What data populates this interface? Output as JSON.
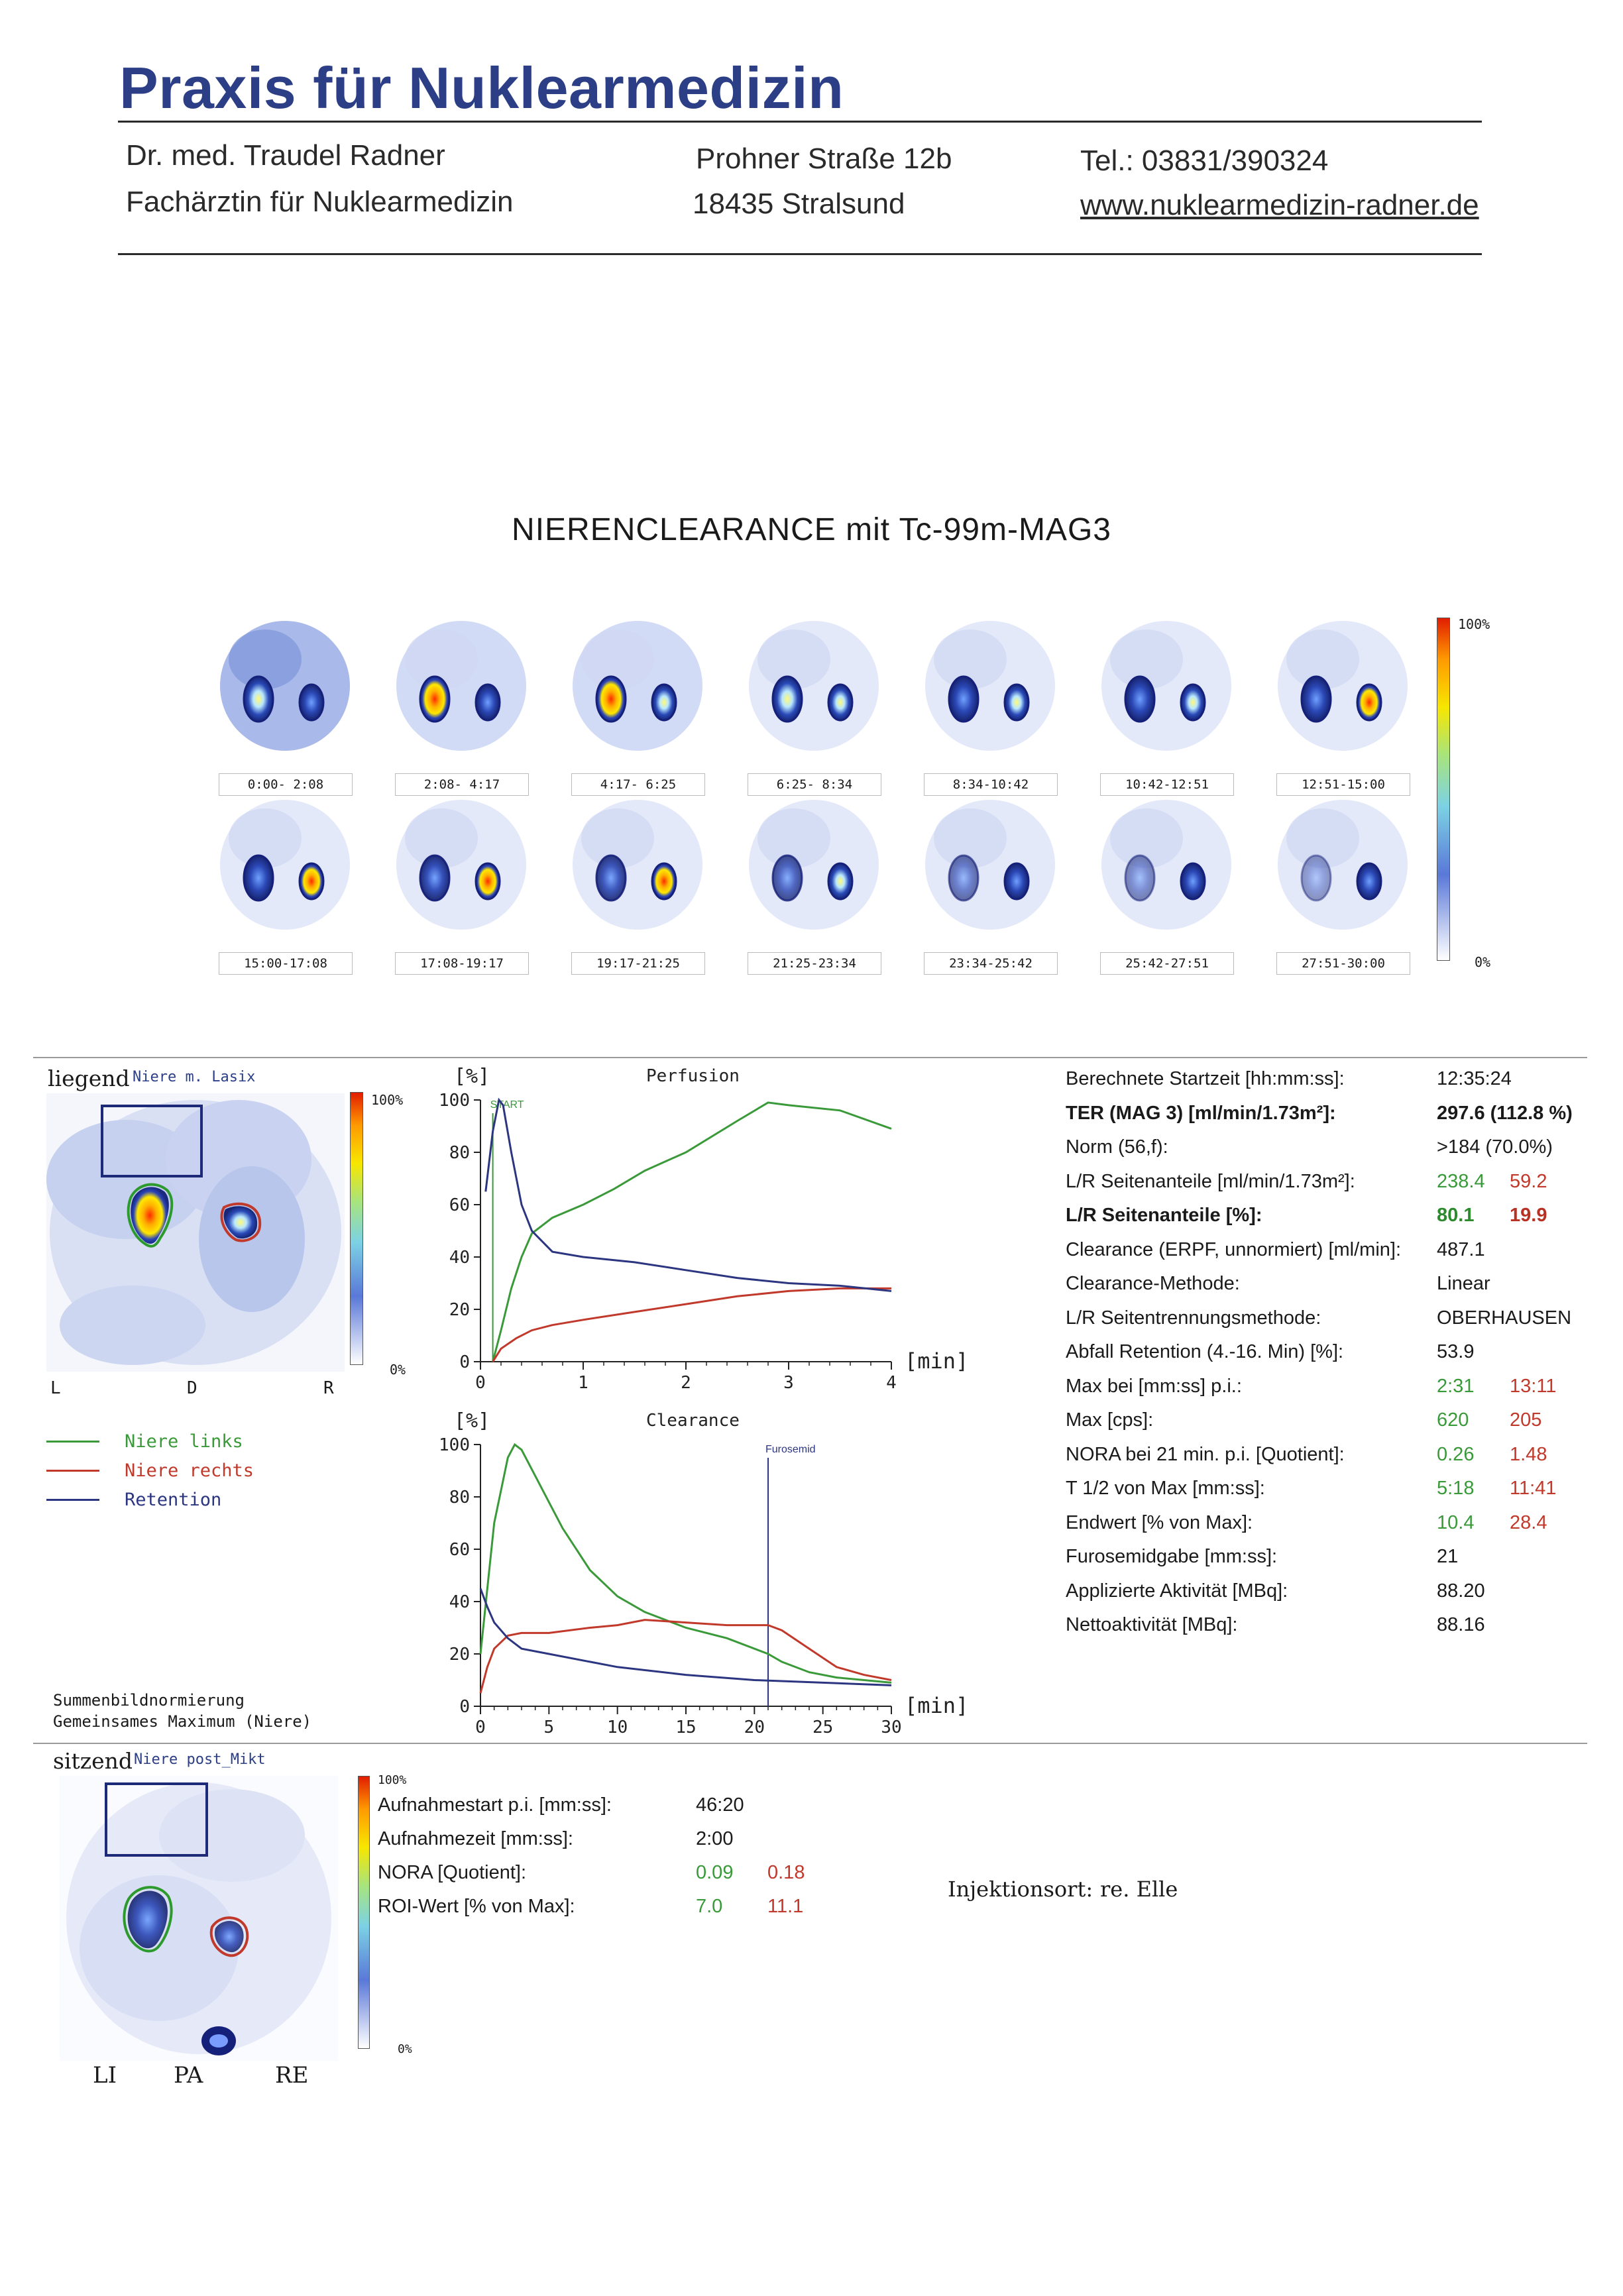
{
  "header": {
    "practice": "Praxis für Nuklearmedizin",
    "doctor": "Dr. med. Traudel Radner",
    "specialty": "Fachärztin für Nuklearmedizin",
    "street": "Prohner Straße 12b",
    "city": "18435 Stralsund",
    "phone": "Tel.: 03831/390324",
    "web": "www.nuklearmedizin-radner.de"
  },
  "title": "NIERENCLEARANCE  mit  Tc-99m-MAG3",
  "sequence": {
    "frames": [
      "0:00- 2:08",
      "2:08- 4:17",
      "4:17- 6:25",
      "6:25- 8:34",
      "8:34-10:42",
      "10:42-12:51",
      "12:51-15:00",
      "15:00-17:08",
      "17:08-19:17",
      "19:17-21:25",
      "21:25-23:34",
      "23:34-25:42",
      "25:42-27:51",
      "27:51-30:00"
    ],
    "scale_max": "100%",
    "scale_min": "0%"
  },
  "supine": {
    "position": "liegend",
    "image_label": "Niere m. Lasix",
    "scale_max": "100%",
    "scale_min": "0%",
    "orient_l": "L",
    "orient_d": "D",
    "orient_r": "R",
    "legend": [
      {
        "label": "Niere links",
        "color": "#3a9a3a"
      },
      {
        "label": "Niere rechts",
        "color": "#c0392b"
      },
      {
        "label": "Retention",
        "color": "#2c3580"
      }
    ],
    "normalization_1": "Summenbildnormierung",
    "normalization_2": "Gemeinsames Maximum (Niere)"
  },
  "chart_data": [
    {
      "type": "line",
      "title": "Perfusion",
      "ylabel": "[%]",
      "xlabel": "[min]",
      "xlim": [
        0,
        4
      ],
      "ylim": [
        0,
        100
      ],
      "xticks": [
        "0",
        "1",
        "2",
        "3",
        "4"
      ],
      "yticks": [
        "0",
        "20",
        "40",
        "60",
        "80",
        "100"
      ],
      "marker": {
        "label": "START",
        "x": 0.12
      },
      "series": [
        {
          "name": "Niere links",
          "color": "#3a9a3a",
          "x": [
            0.12,
            0.2,
            0.3,
            0.4,
            0.5,
            0.7,
            1.0,
            1.3,
            1.6,
            2.0,
            2.5,
            2.8,
            3.0,
            3.5,
            4.0
          ],
          "y": [
            0,
            12,
            28,
            40,
            49,
            55,
            60,
            66,
            73,
            80,
            92,
            99,
            98,
            96,
            89
          ]
        },
        {
          "name": "Niere rechts",
          "color": "#c0392b",
          "x": [
            0.12,
            0.2,
            0.35,
            0.5,
            0.7,
            1.0,
            1.5,
            2.0,
            2.5,
            3.0,
            3.5,
            4.0
          ],
          "y": [
            0,
            5,
            9,
            12,
            14,
            16,
            19,
            22,
            25,
            27,
            28,
            28
          ]
        },
        {
          "name": "Retention",
          "color": "#2c3580",
          "x": [
            0.05,
            0.12,
            0.18,
            0.22,
            0.3,
            0.4,
            0.5,
            0.7,
            1.0,
            1.5,
            2.0,
            2.5,
            3.0,
            3.5,
            4.0
          ],
          "y": [
            65,
            88,
            100,
            98,
            80,
            60,
            50,
            42,
            40,
            38,
            35,
            32,
            30,
            29,
            27
          ]
        }
      ]
    },
    {
      "type": "line",
      "title": "Clearance",
      "ylabel": "[%]",
      "xlabel": "[min]",
      "xlim": [
        0,
        30
      ],
      "ylim": [
        0,
        100
      ],
      "xticks": [
        "0",
        "5",
        "10",
        "15",
        "20",
        "25",
        "30"
      ],
      "yticks": [
        "0",
        "20",
        "40",
        "60",
        "80",
        "100"
      ],
      "marker": {
        "label": "Furosemid",
        "x": 21
      },
      "series": [
        {
          "name": "Niere links",
          "color": "#3a9a3a",
          "x": [
            0,
            1,
            2,
            2.5,
            3,
            4,
            5,
            6,
            8,
            10,
            12,
            15,
            18,
            21,
            22,
            24,
            26,
            28,
            30
          ],
          "y": [
            20,
            70,
            95,
            100,
            98,
            88,
            78,
            68,
            52,
            42,
            36,
            30,
            26,
            20,
            17,
            13,
            11,
            10,
            9
          ]
        },
        {
          "name": "Niere rechts",
          "color": "#c0392b",
          "x": [
            0,
            0.5,
            1,
            2,
            3,
            5,
            8,
            10,
            12,
            15,
            18,
            21,
            22,
            24,
            26,
            28,
            30
          ],
          "y": [
            5,
            15,
            22,
            27,
            28,
            28,
            30,
            31,
            33,
            32,
            31,
            31,
            29,
            22,
            15,
            12,
            10
          ]
        },
        {
          "name": "Retention",
          "color": "#2c3580",
          "x": [
            0,
            0.5,
            1,
            2,
            3,
            5,
            8,
            10,
            15,
            20,
            25,
            30
          ],
          "y": [
            45,
            38,
            32,
            26,
            22,
            20,
            17,
            15,
            12,
            10,
            9,
            8
          ]
        }
      ]
    }
  ],
  "results": [
    {
      "label": "Berechnete Startzeit [hh:mm:ss]:",
      "v1": "12:35:24"
    },
    {
      "label": "TER (MAG 3) [ml/min/1.73m²]:",
      "v1": "297.6 (112.8 %)",
      "bold": true
    },
    {
      "label": "Norm (56,f):",
      "v1": ">184 (70.0%)"
    },
    {
      "label": "L/R Seitenanteile [ml/min/1.73m²]:",
      "v1": "238.4",
      "v2": "59.2"
    },
    {
      "label": "L/R Seitenanteile [%]:",
      "v1": "80.1",
      "v2": "19.9",
      "bold": true
    },
    {
      "label": "Clearance (ERPF, unnormiert) [ml/min]:",
      "v1": "487.1"
    },
    {
      "label": "Clearance-Methode:",
      "v1": "Linear"
    },
    {
      "label": "L/R Seitentrennungsmethode:",
      "v1": "OBERHAUSEN"
    },
    {
      "label": "Abfall Retention (4.-16. Min) [%]:",
      "v1": "53.9"
    },
    {
      "label": "Max bei [mm:ss] p.i.:",
      "v1": "2:31",
      "v2": "13:11"
    },
    {
      "label": "Max [cps]:",
      "v1": "620",
      "v2": "205"
    },
    {
      "label": "NORA bei 21 min. p.i. [Quotient]:",
      "v1": "0.26",
      "v2": "1.48"
    },
    {
      "label": "T 1/2 von Max [mm:ss]:",
      "v1": "5:18",
      "v2": "11:41"
    },
    {
      "label": "Endwert [% von Max]:",
      "v1": "10.4",
      "v2": "28.4"
    },
    {
      "label": "Furosemidgabe [mm:ss]:",
      "v1": "21"
    },
    {
      "label": "Applizierte Aktivität [MBq]:",
      "v1": "88.20"
    },
    {
      "label": "Nettoaktivität [MBq]:",
      "v1": "88.16"
    }
  ],
  "sitting": {
    "position": "sitzend",
    "image_label": "Niere post_Mikt",
    "scale_max": "100%",
    "scale_min": "0%",
    "orient_l": "LI",
    "orient_pa": "PA",
    "orient_r": "RE",
    "rows": [
      {
        "label": "Aufnahmestart p.i. [mm:ss]:",
        "v1": "46:20"
      },
      {
        "label": "Aufnahmezeit [mm:ss]:",
        "v1": "2:00"
      },
      {
        "label": "NORA [Quotient]:",
        "v1": "0.09",
        "v2": "0.18"
      },
      {
        "label": "ROI-Wert [% von Max]:",
        "v1": "7.0",
        "v2": "11.1"
      }
    ],
    "injection_label": "Injektionsort:",
    "injection_value": "re. Elle"
  }
}
